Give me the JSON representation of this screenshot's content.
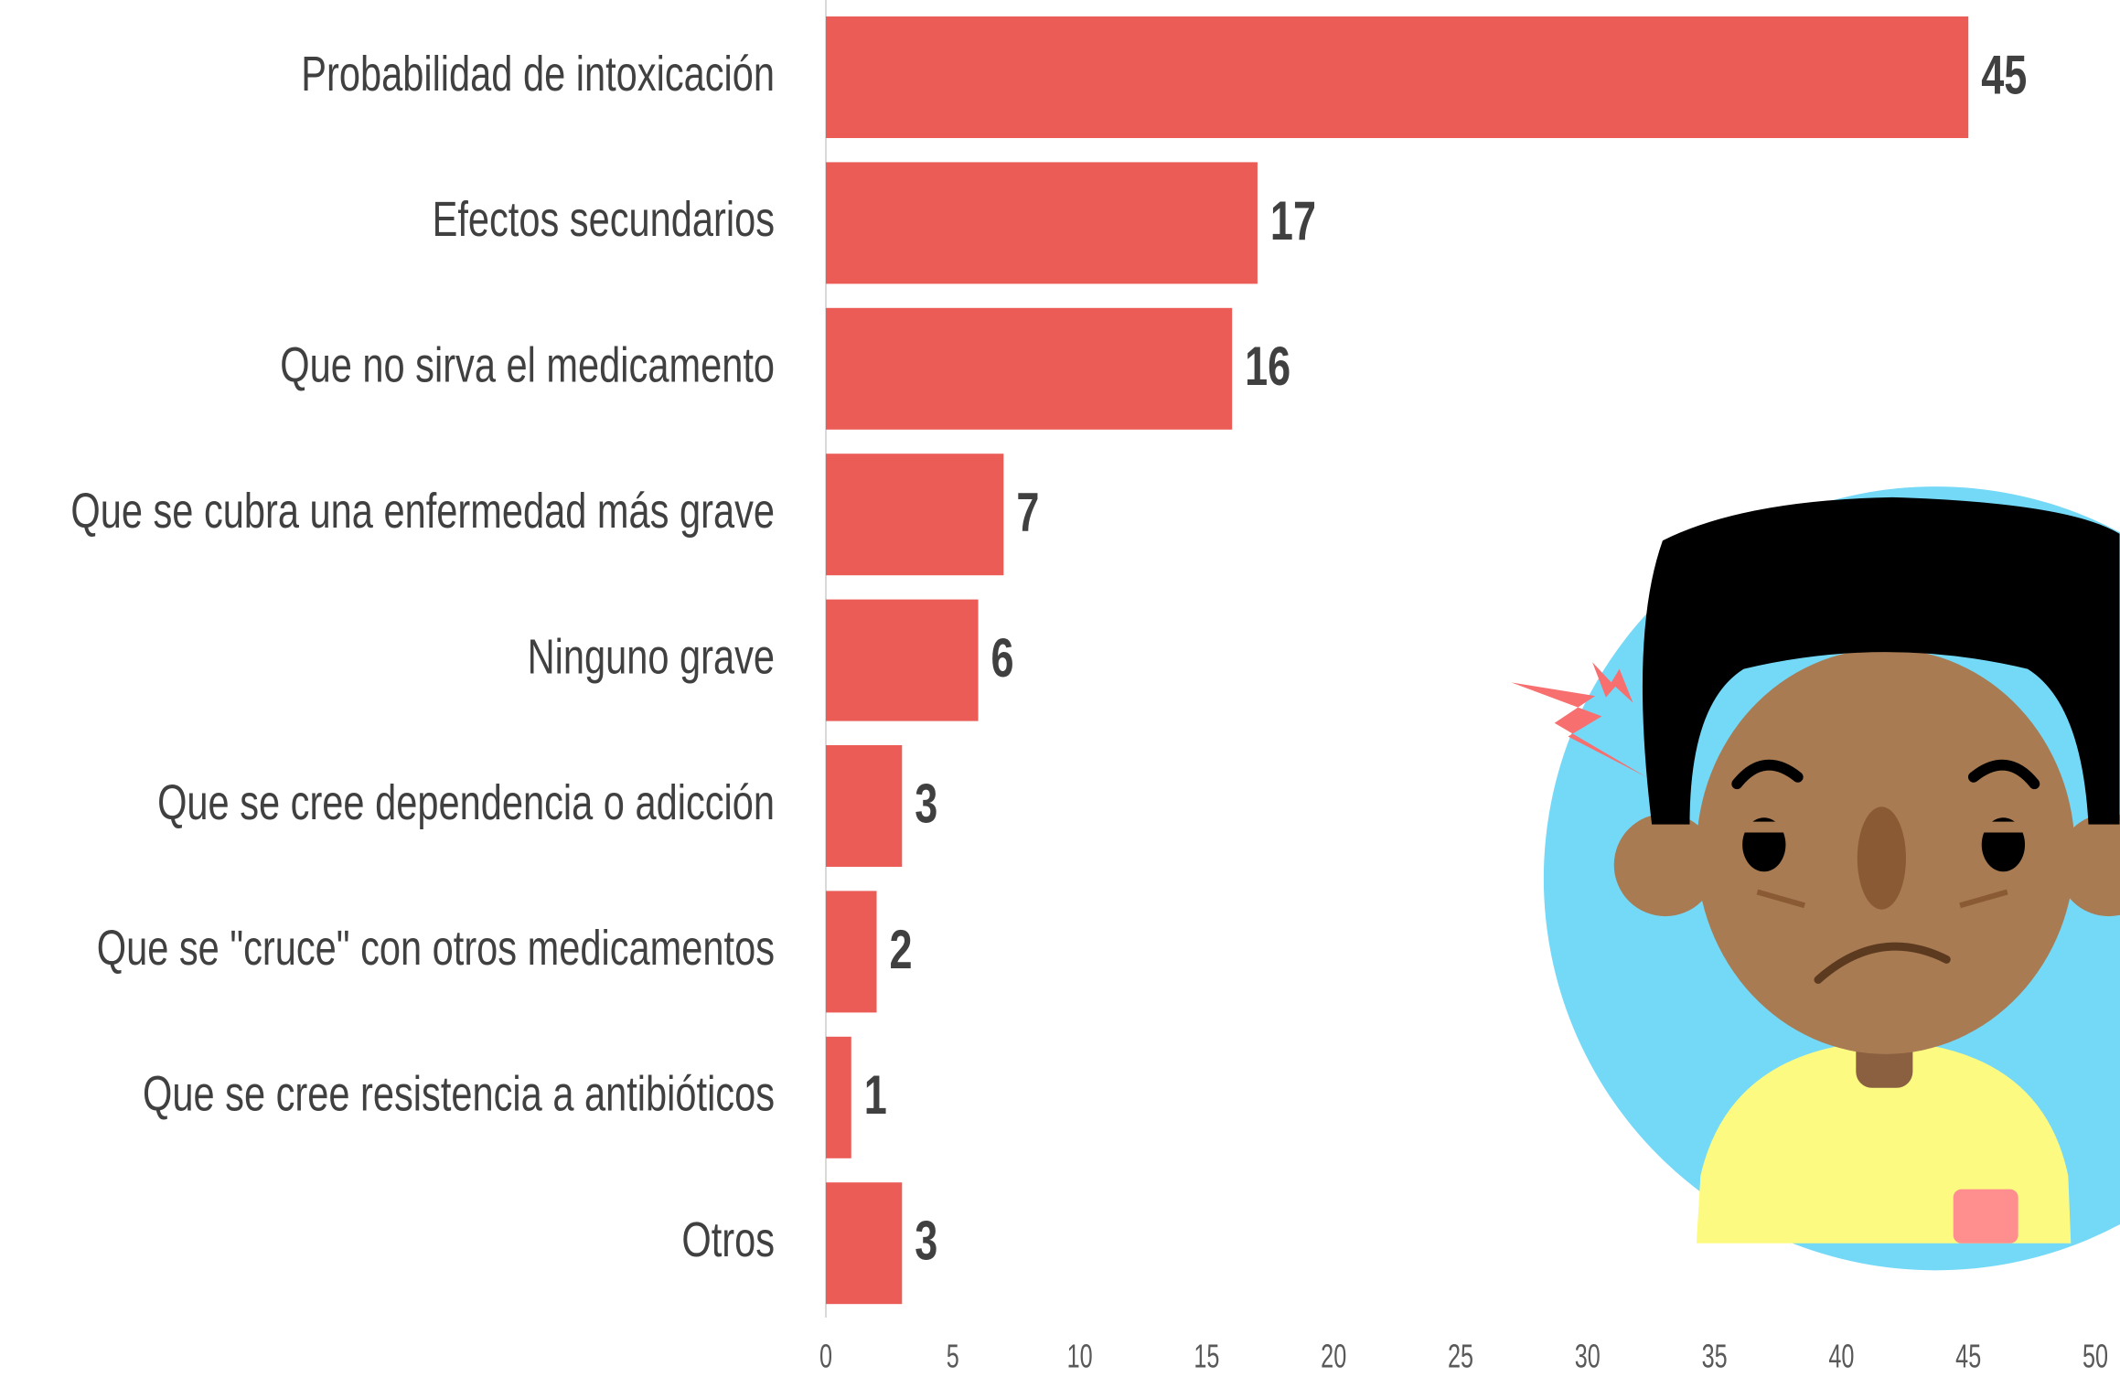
{
  "chart_data": {
    "type": "bar",
    "orientation": "horizontal",
    "categories": [
      "Probabilidad de intoxicación",
      "Efectos secundarios",
      "Que no sirva el medicamento",
      "Que se cubra una enfermedad más grave",
      "Ninguno grave",
      "Que se cree dependencia o adicción",
      "Que se \"cruce\" con otros medicamentos",
      "Que se cree resistencia a antibióticos",
      "Otros"
    ],
    "values": [
      45,
      17,
      16,
      7,
      6,
      3,
      2,
      1,
      3
    ],
    "color": "#eb5c57",
    "xlim": [
      0,
      50
    ],
    "xticks": [
      0,
      5,
      10,
      15,
      20,
      25,
      30,
      35,
      40,
      45,
      50
    ]
  }
}
